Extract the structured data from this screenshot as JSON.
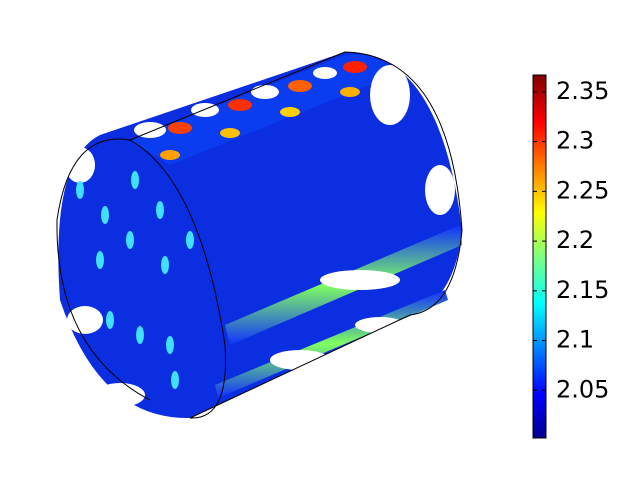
{
  "colorbar": {
    "ylim": [
      2.002,
      2.367
    ],
    "yticks": [
      2.05,
      2.1,
      2.15,
      2.2,
      2.25,
      2.3,
      2.35
    ]
  }
}
